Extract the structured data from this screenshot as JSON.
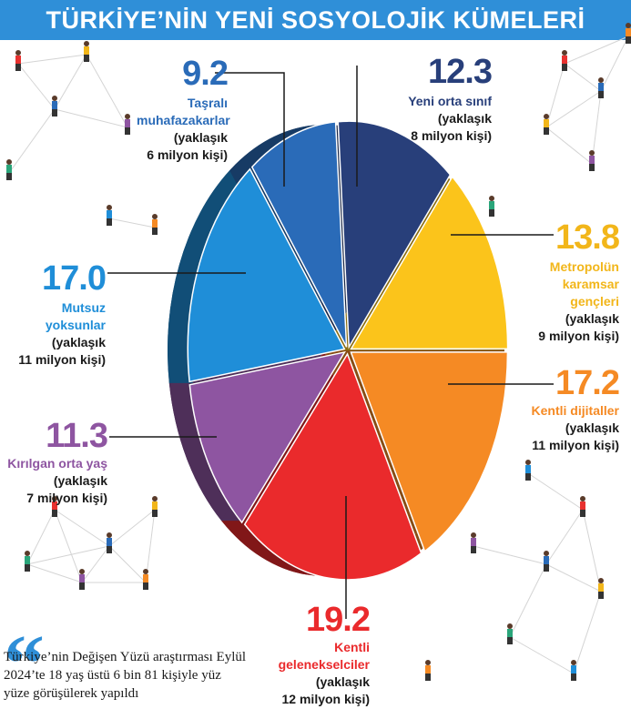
{
  "header": {
    "title": "TÜRKİYE’NİN YENİ SOSYOLOJİK KÜMELERİ"
  },
  "footnote": "Türkiye’nin Değişen Yüzü araştırması Eylül 2024’te 18 yaş üstü 6 bin 81 kişiyle yüz yüze görüşülerek yapıldı",
  "chart_data": {
    "type": "pie",
    "slices": [
      {
        "value": 12.3,
        "value_label": "12.3",
        "name": "Yeni orta sınıf",
        "sub1": "(yaklaşık",
        "sub2": "8 milyon kişi)",
        "color": "#283f7a"
      },
      {
        "value": 13.8,
        "value_label": "13.8",
        "name1": "Metropolün",
        "name2": "karamsar",
        "name3": "gençleri",
        "sub1": "(yaklaşık",
        "sub2": "9 milyon kişi)",
        "color": "#fbc41b"
      },
      {
        "value": 17.2,
        "value_label": "17.2",
        "name": "Kentli dijitaller",
        "sub1": "(yaklaşık",
        "sub2": "11 milyon kişi)",
        "color": "#f58a24"
      },
      {
        "value": 19.2,
        "value_label": "19.2",
        "name1": "Kentli",
        "name2": "gelenekselciler",
        "sub1": "(yaklaşık",
        "sub2": "12 milyon kişi)",
        "color": "#ea2a2c"
      },
      {
        "value": 11.3,
        "value_label": "11.3",
        "name": "Kırılgan orta yaş",
        "sub1": "(yaklaşık",
        "sub2": "7 milyon kişi)",
        "color": "#8e55a1"
      },
      {
        "value": 17.0,
        "value_label": "17.0",
        "name1": "Mutsuz",
        "name2": "yoksunlar",
        "sub1": "(yaklaşık",
        "sub2": "11 milyon kişi)",
        "color": "#1f8ed8"
      },
      {
        "value": 9.2,
        "value_label": "9.2",
        "name1": "Taşralı",
        "name2": "muhafazakarlar",
        "sub1": "(yaklaşık",
        "sub2": "6 milyon kişi)",
        "color": "#2a6bb8"
      }
    ]
  }
}
